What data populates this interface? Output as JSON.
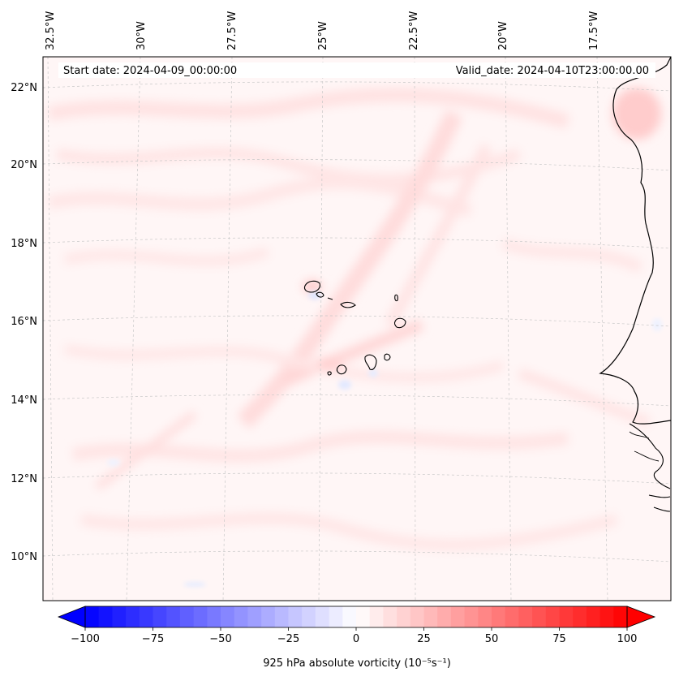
{
  "map": {
    "header": {
      "start_date": "Start date: 2024-04-09_00:00:00",
      "valid_date": "Valid_date: 2024-04-10T23:00:00.00"
    },
    "lon_labels": [
      "32.5°W",
      "30°W",
      "27.5°W",
      "25°W",
      "22.5°W",
      "20°W",
      "17.5°W"
    ],
    "lat_labels": [
      "22°N",
      "20°N",
      "18°N",
      "16°N",
      "14°N",
      "12°N",
      "10°N"
    ],
    "colors": {
      "frame": "#000000",
      "gridline": "#b0b0b0",
      "background": "#fff5f5",
      "coast": "#000000"
    }
  },
  "colorbar": {
    "label": "925 hPa absolute vorticity (10⁻⁵s⁻¹)",
    "ticks": [
      "−100",
      "−75",
      "−50",
      "−25",
      "0",
      "25",
      "50",
      "75",
      "100"
    ],
    "min_color": "#0000ff",
    "mid_color": "#ffffff",
    "max_color": "#ff0000",
    "steps": 40
  }
}
